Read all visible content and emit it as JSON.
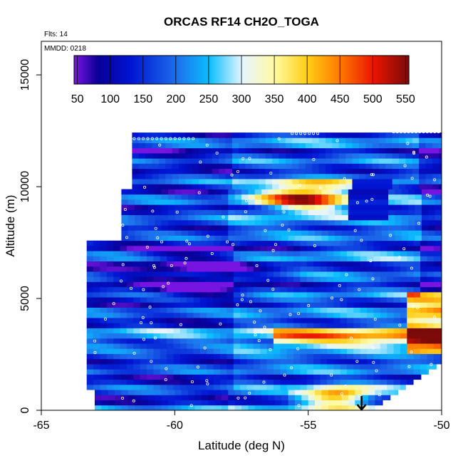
{
  "chart_data": {
    "type": "heatmap",
    "title": "ORCAS RF14 CH2O_TOGA",
    "xlabel": "Latitude (deg N)",
    "ylabel": "Altitude (m)",
    "xlim": [
      -65,
      -50
    ],
    "ylim": [
      0,
      16500
    ],
    "x_ticks": [
      -65,
      -60,
      -55,
      -50
    ],
    "y_ticks": [
      0,
      5000,
      10000,
      15000
    ],
    "annotations": {
      "flights": "Flts: 14",
      "mmdd": "MMDD: 0218"
    },
    "colorbar": {
      "ticks": [
        50,
        100,
        150,
        200,
        250,
        300,
        350,
        400,
        450,
        500,
        550
      ],
      "range": [
        45,
        555
      ]
    },
    "colors": {
      "low": "#7f10e0",
      "mid_low": "#0a00b8",
      "mid": "#1ab0ff",
      "pale": "#fff8c0",
      "high": "#ff9a00",
      "peak": "#e00000",
      "max": "#8a0000"
    },
    "features": [
      {
        "name": "upper-layer plume",
        "lat_range": [
          -58,
          -53.5
        ],
        "alt_range": [
          8500,
          10200
        ],
        "value_peak": 500
      },
      {
        "name": "mid-level plume",
        "lat_range": [
          -56,
          -51
        ],
        "alt_range": [
          2800,
          3500
        ],
        "value_peak": 480
      },
      {
        "name": "surface plume",
        "lat_range": [
          -56,
          -52
        ],
        "alt_range": [
          200,
          900
        ],
        "value_peak": 510
      },
      {
        "name": "low-value band",
        "lat_range": [
          -61,
          -56
        ],
        "alt_range": [
          5000,
          7000
        ],
        "value_peak": 60
      }
    ],
    "marker": {
      "lat": -53.0,
      "alt": 0,
      "description": "arrow at surface"
    }
  }
}
